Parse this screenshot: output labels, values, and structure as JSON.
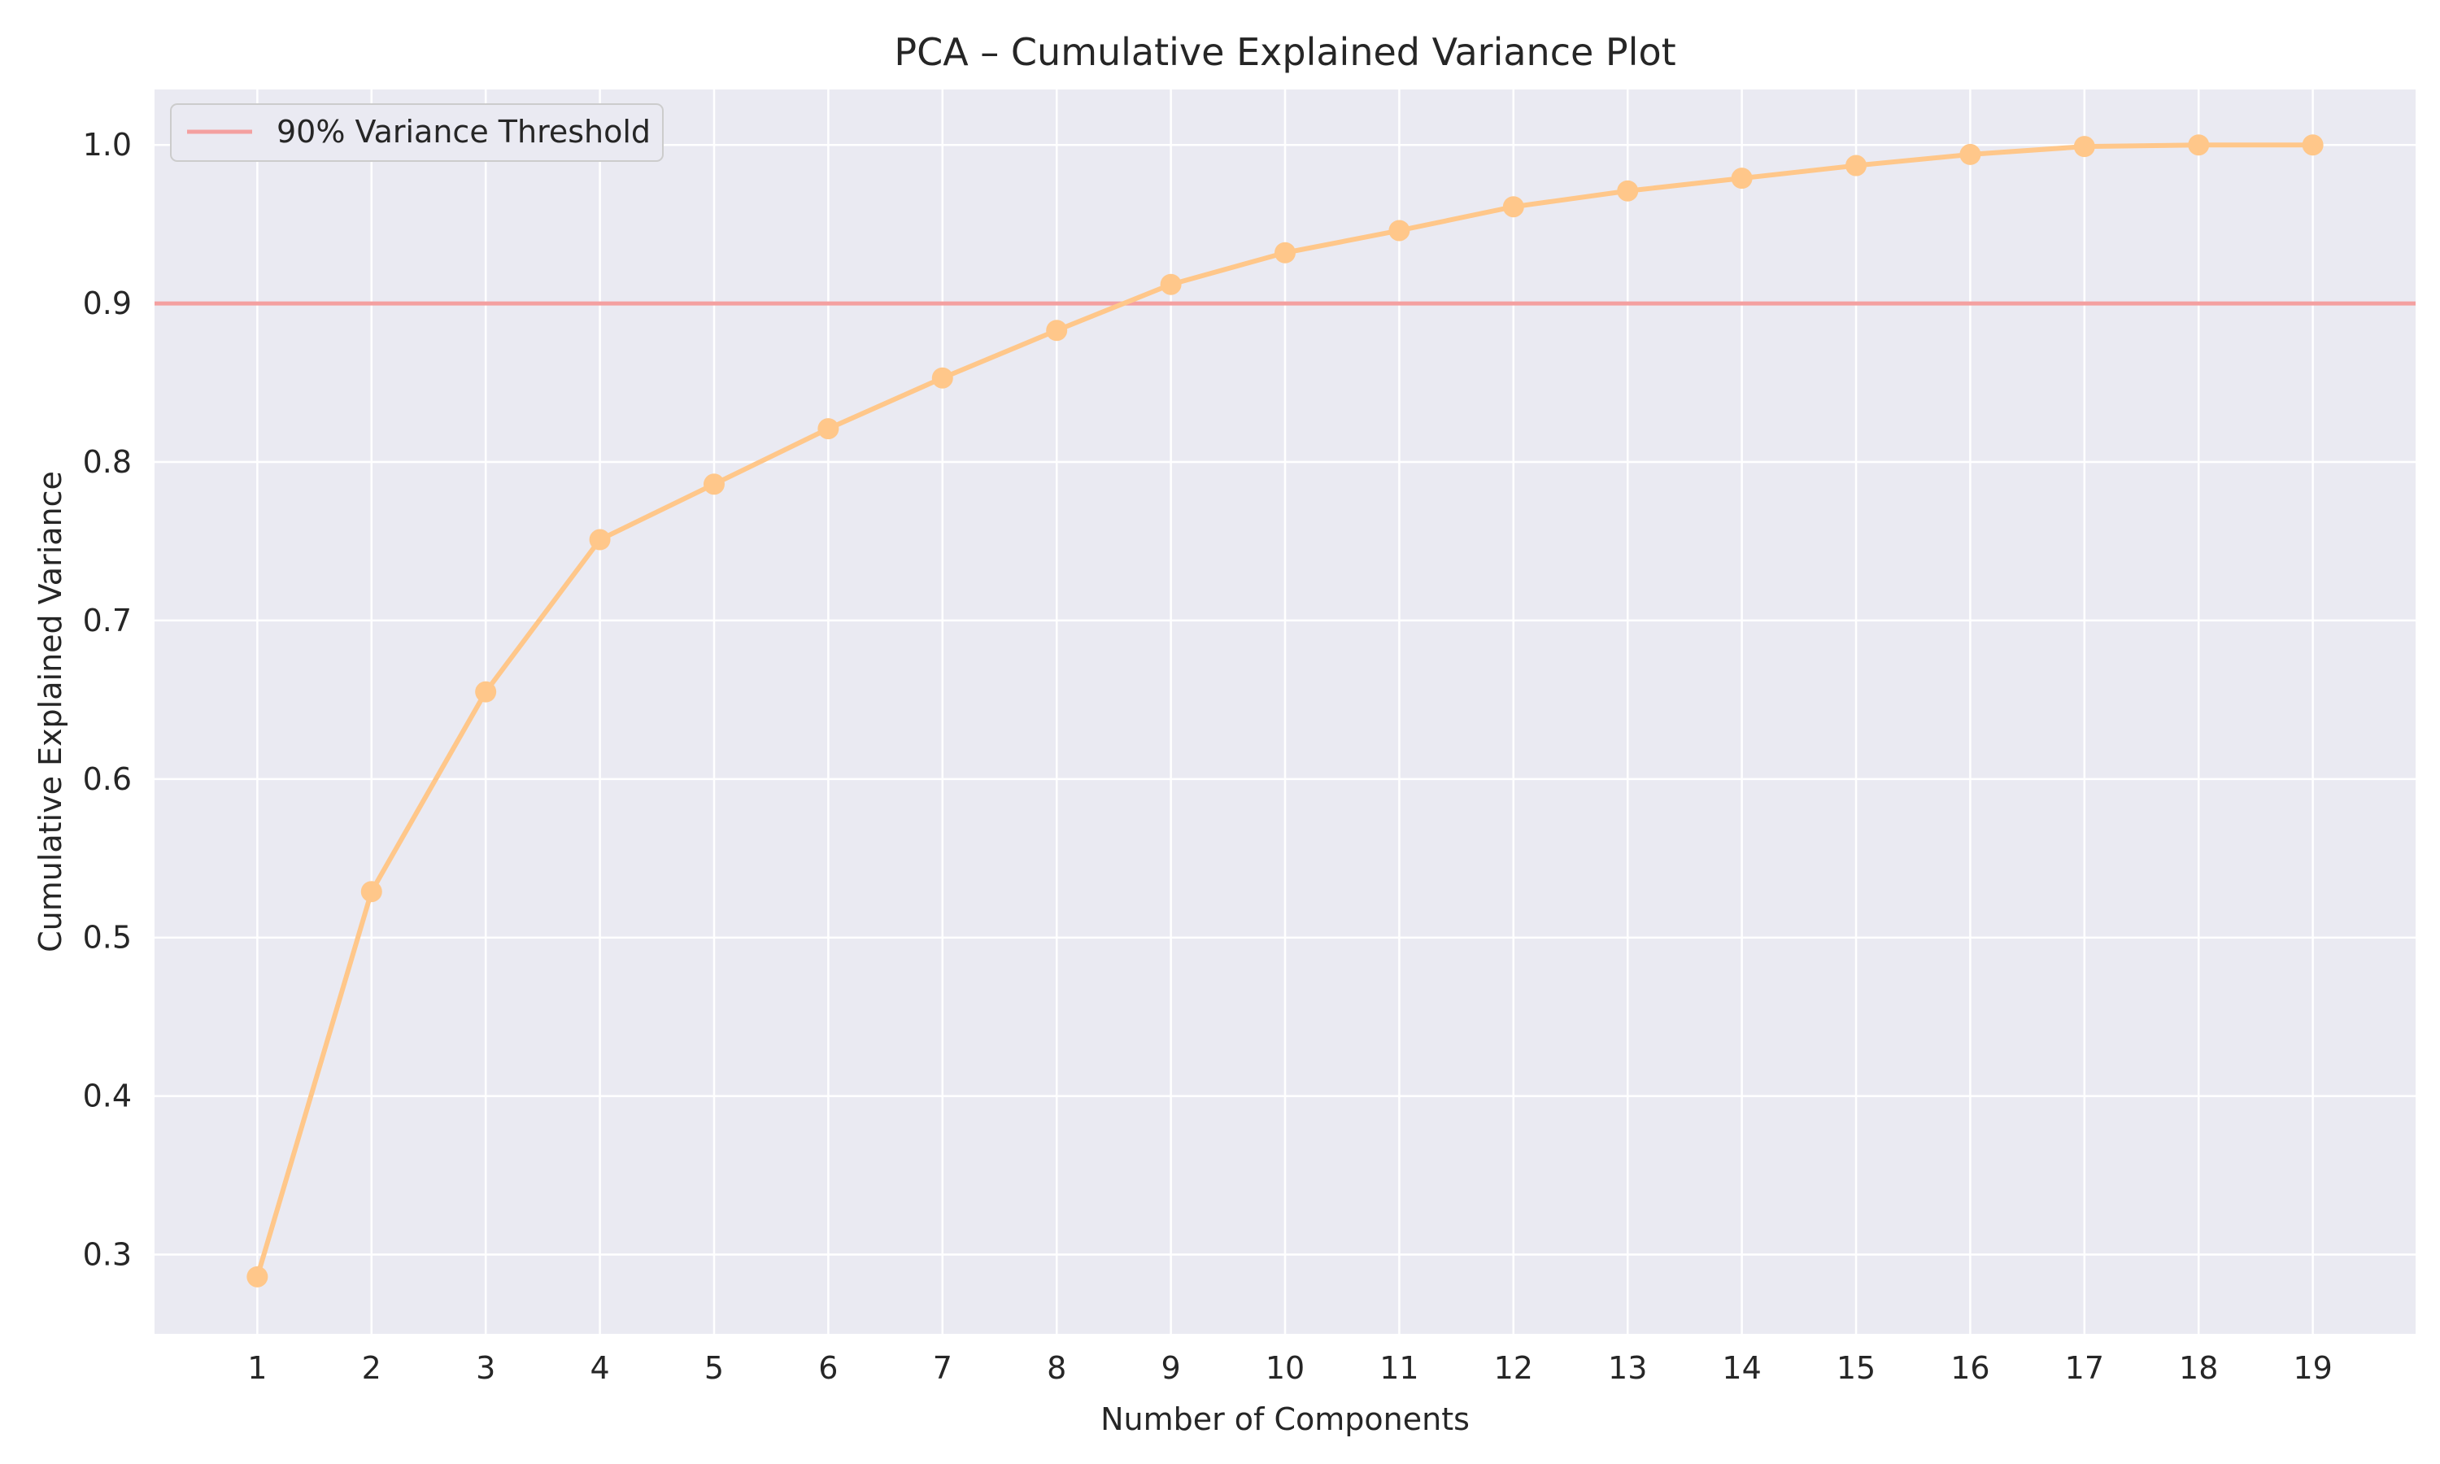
{
  "chart_data": {
    "type": "line",
    "title": "PCA – Cumulative Explained Variance Plot",
    "xlabel": "Number of Components",
    "ylabel": "Cumulative Explained Variance",
    "x": [
      1,
      2,
      3,
      4,
      5,
      6,
      7,
      8,
      9,
      10,
      11,
      12,
      13,
      14,
      15,
      16,
      17,
      18,
      19
    ],
    "xticks": [
      "1",
      "2",
      "3",
      "4",
      "5",
      "6",
      "7",
      "8",
      "9",
      "10",
      "11",
      "12",
      "13",
      "14",
      "15",
      "16",
      "17",
      "18",
      "19"
    ],
    "series": [
      {
        "values": [
          0.286,
          0.529,
          0.655,
          0.751,
          0.786,
          0.821,
          0.853,
          0.883,
          0.912,
          0.932,
          0.946,
          0.961,
          0.971,
          0.979,
          0.987,
          0.994,
          0.999,
          1.0,
          1.0
        ],
        "color": "#ffc78a",
        "marker": "circle"
      }
    ],
    "threshold": {
      "name": "90% Variance Threshold",
      "value": 0.9,
      "color": "#f4a0a0"
    },
    "yticks": [
      "0.3",
      "0.4",
      "0.5",
      "0.6",
      "0.7",
      "0.8",
      "0.9",
      "1.0"
    ],
    "ytick_values": [
      0.3,
      0.4,
      0.5,
      0.6,
      0.7,
      0.8,
      0.9,
      1.0
    ],
    "xlim": [
      0.1,
      19.9
    ],
    "ylim": [
      0.25,
      1.035
    ],
    "grid": true,
    "legend_position": "top-left",
    "background_color": "#eaeaf2",
    "grid_color": "#ffffff"
  }
}
